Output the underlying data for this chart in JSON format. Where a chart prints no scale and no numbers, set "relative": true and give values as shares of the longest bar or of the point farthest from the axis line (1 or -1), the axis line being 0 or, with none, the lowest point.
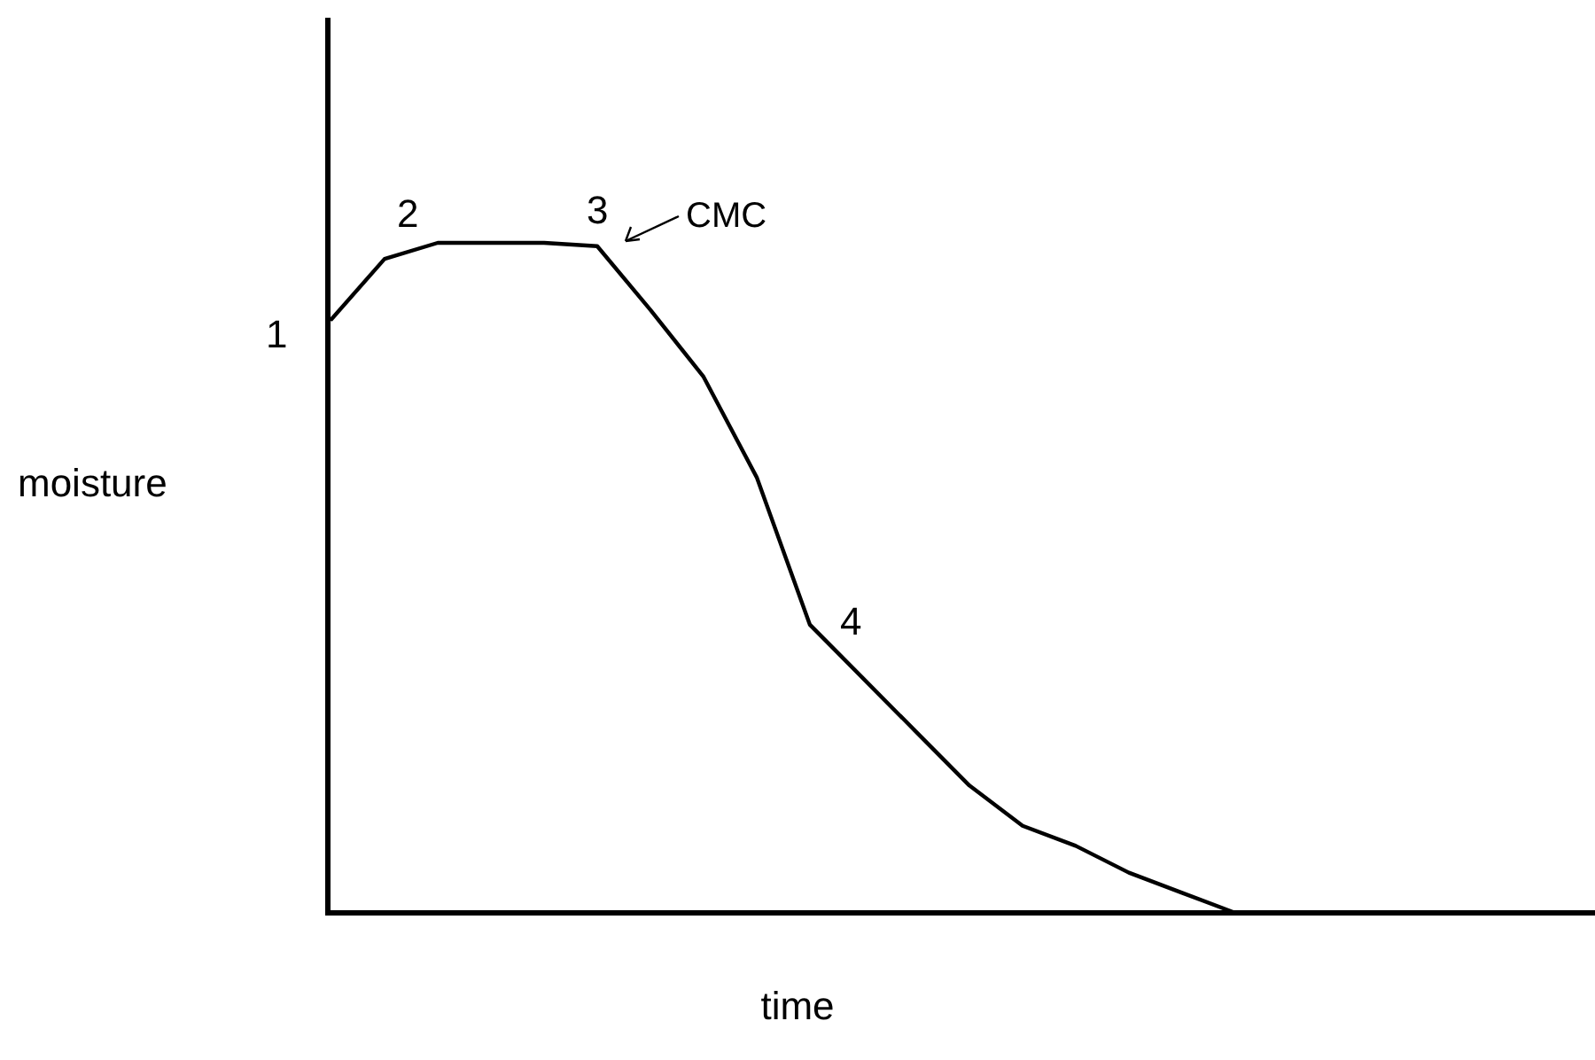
{
  "chart_data": {
    "type": "line",
    "relative": true,
    "xlabel": "time",
    "ylabel": "moisture",
    "marker": "none",
    "line_style": "solid",
    "categories": [
      null,
      null,
      null,
      null,
      null,
      null,
      null,
      null,
      null,
      null,
      null,
      null,
      null,
      null,
      null,
      null,
      null,
      null
    ],
    "series": [
      {
        "color": "#000000",
        "values": [
          0.886,
          0.976,
          1,
          1,
          1,
          0.995,
          0.9,
          0.8,
          0.65,
          0.43,
          0.35,
          0.27,
          0.19,
          0.13,
          0.1,
          0.06,
          0.03,
          0
        ]
      }
    ],
    "annotations": [
      "1",
      "2",
      "3",
      "CMC",
      "4"
    ]
  }
}
